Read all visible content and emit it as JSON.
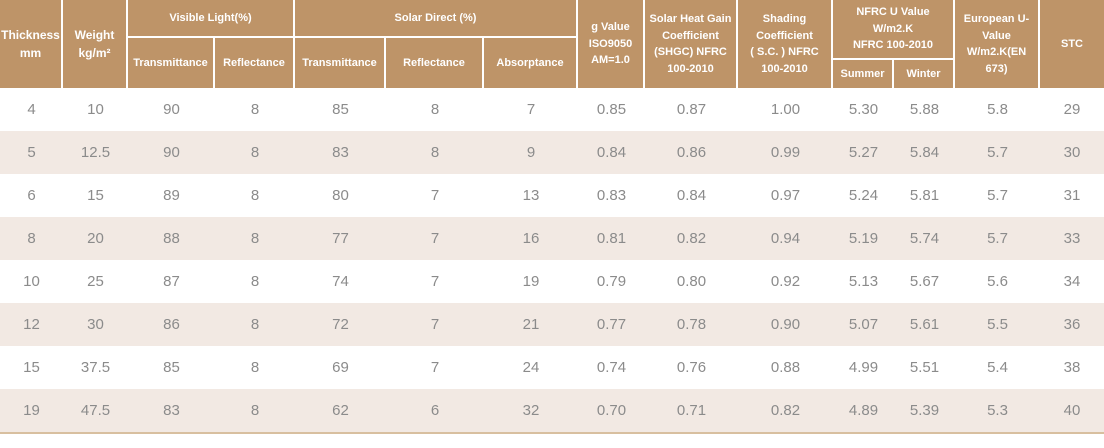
{
  "colors": {
    "header_background": "#be9468",
    "header_text": "#ffffff",
    "alt_row_background": "#f2e9e3",
    "data_text": "#8b8b8b",
    "separator": "#ffffff",
    "bottom_border": "#d8bf9f"
  },
  "table": {
    "header": {
      "thickness": "Thickness\nmm",
      "weight": "Weight\nkg/m²",
      "visible_light": {
        "group": "Visible Light(%)",
        "transmittance": "Transmittance",
        "reflectance": "Reflectance"
      },
      "solar_direct": {
        "group": "Solar Direct (%)",
        "transmittance": "Transmittance",
        "reflectance": "Reflectance",
        "absorptance": "Absorptance"
      },
      "g_value": "g Value\nISO9050\nAM=1.0",
      "shgc": "Solar Heat Gain\nCoefficient\n(SHGC) NFRC\n100-2010",
      "shading_coefficient": "Shading\nCoefficient\n( S.C. ) NFRC\n100-2010",
      "nfrc_u_value": {
        "group": "NFRC U Value\nW/m2.K\nNFRC 100-2010",
        "summer": "Summer",
        "winter": "Winter"
      },
      "european_u_value": "European U-\nValue\nW/m2.K(EN\n673)",
      "stc": "STC"
    },
    "rows": [
      [
        "4",
        "10",
        "90",
        "8",
        "85",
        "8",
        "7",
        "0.85",
        "0.87",
        "1.00",
        "5.30",
        "5.88",
        "5.8",
        "29"
      ],
      [
        "5",
        "12.5",
        "90",
        "8",
        "83",
        "8",
        "9",
        "0.84",
        "0.86",
        "0.99",
        "5.27",
        "5.84",
        "5.7",
        "30"
      ],
      [
        "6",
        "15",
        "89",
        "8",
        "80",
        "7",
        "13",
        "0.83",
        "0.84",
        "0.97",
        "5.24",
        "5.81",
        "5.7",
        "31"
      ],
      [
        "8",
        "20",
        "88",
        "8",
        "77",
        "7",
        "16",
        "0.81",
        "0.82",
        "0.94",
        "5.19",
        "5.74",
        "5.7",
        "33"
      ],
      [
        "10",
        "25",
        "87",
        "8",
        "74",
        "7",
        "19",
        "0.79",
        "0.80",
        "0.92",
        "5.13",
        "5.67",
        "5.6",
        "34"
      ],
      [
        "12",
        "30",
        "86",
        "8",
        "72",
        "7",
        "21",
        "0.77",
        "0.78",
        "0.90",
        "5.07",
        "5.61",
        "5.5",
        "36"
      ],
      [
        "15",
        "37.5",
        "85",
        "8",
        "69",
        "7",
        "24",
        "0.74",
        "0.76",
        "0.88",
        "4.99",
        "5.51",
        "5.4",
        "38"
      ],
      [
        "19",
        "47.5",
        "83",
        "8",
        "62",
        "6",
        "32",
        "0.70",
        "0.71",
        "0.82",
        "4.89",
        "5.39",
        "5.3",
        "40"
      ]
    ]
  }
}
